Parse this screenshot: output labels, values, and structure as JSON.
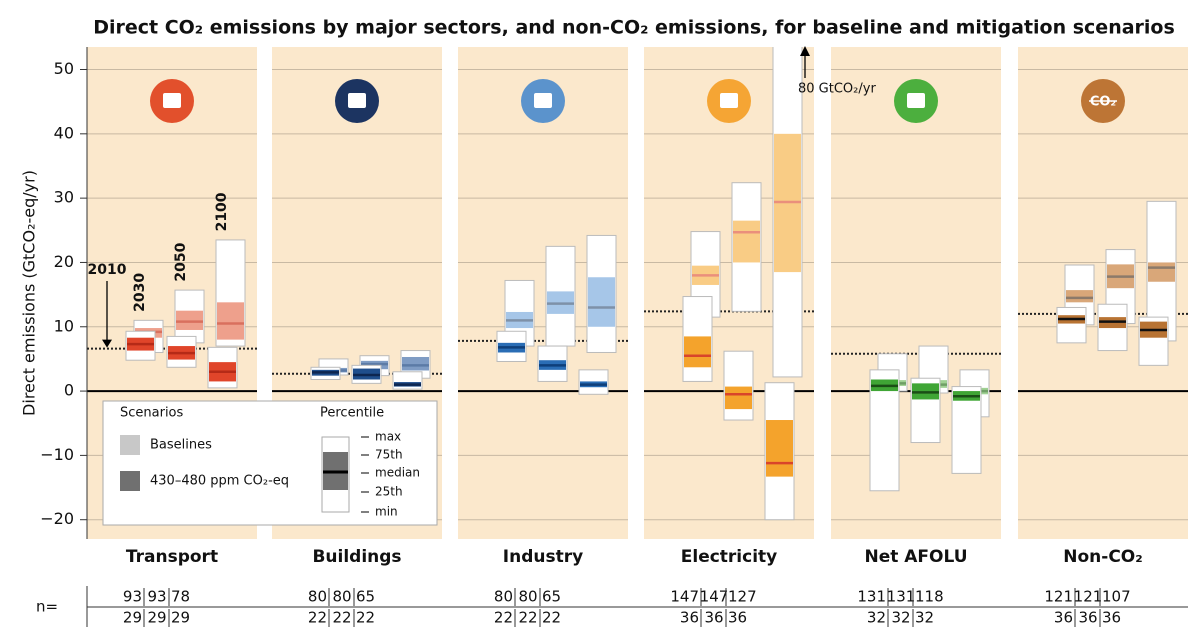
{
  "chart_data": {
    "type": "box",
    "title": "Direct CO₂ emissions by major sectors, and non-CO₂ emissions, for baseline and mitigation scenarios",
    "y_label": "Direct emissions (GtCO₂-eq/yr)",
    "ylim": [
      -23,
      53.5
    ],
    "yticks": [
      {
        "value": -20,
        "label": "−20"
      },
      {
        "value": -10,
        "label": "−10"
      },
      0,
      10,
      20,
      30,
      40,
      50
    ],
    "grid": true,
    "years": [
      "2030",
      "2050",
      "2100"
    ],
    "reference_year": "2010",
    "annotation": "80 GtCO₂/yr",
    "n_label": "n=",
    "series": [
      {
        "name": "Baselines",
        "color": "#c8c8c8"
      },
      {
        "name": "430–480 ppm CO₂-eq",
        "color": "#707070"
      }
    ],
    "legend": {
      "scenarios_title": "Scenarios",
      "percentile_title": "Percentile",
      "percentile_labels": [
        "max",
        "75th",
        "median",
        "25th",
        "min"
      ]
    },
    "sectors": [
      {
        "name": "Transport",
        "reference_2010": 6.6,
        "colors": {
          "icon": "#e2502c",
          "baseline": "#eea08c",
          "mitigation": "#e0452a",
          "baseline_median": "#d9705e",
          "mitigation_median": "#b52a17"
        },
        "baseline": [
          [
            6,
            8.3,
            9.2,
            9.8,
            11
          ],
          [
            7.5,
            9.5,
            10.8,
            12.5,
            15.7
          ],
          [
            7,
            8,
            10.5,
            13.8,
            23.5
          ]
        ],
        "mitigation": [
          [
            4.8,
            6.3,
            7.3,
            8.3,
            9.3
          ],
          [
            3.7,
            4.9,
            5.9,
            7,
            8.5
          ],
          [
            0.5,
            1.5,
            3,
            4.5,
            6.8
          ]
        ],
        "n_baseline": [
          93,
          93,
          78
        ],
        "n_mitigation": [
          29,
          29,
          29
        ]
      },
      {
        "name": "Buildings",
        "reference_2010": 2.7,
        "colors": {
          "icon": "#1c3461",
          "baseline": "#7f9cc4",
          "mitigation": "#1f4e8c",
          "baseline_median": "#5c7ba6",
          "mitigation_median": "#0d2650"
        },
        "baseline": [
          [
            2.5,
            2.9,
            3.2,
            3.6,
            5
          ],
          [
            2.4,
            3.4,
            4.2,
            4.7,
            5.5
          ],
          [
            2,
            3.2,
            4,
            5.3,
            6.3
          ]
        ],
        "mitigation": [
          [
            1.8,
            2.4,
            2.9,
            3.3,
            3.7
          ],
          [
            1.2,
            1.8,
            2.5,
            3.5,
            4
          ],
          [
            0.3,
            0.7,
            1,
            1.4,
            3
          ]
        ],
        "n_baseline": [
          80,
          80,
          65
        ],
        "n_mitigation": [
          22,
          22,
          22
        ]
      },
      {
        "name": "Industry",
        "reference_2010": 7.8,
        "colors": {
          "icon": "#5b93cc",
          "baseline": "#a6c6e8",
          "mitigation": "#2a6db5",
          "baseline_median": "#7e91a8",
          "mitigation_median": "#0e3f7a"
        },
        "baseline": [
          [
            7,
            9.8,
            11,
            12.3,
            17.2
          ],
          [
            7,
            12,
            13.6,
            15.5,
            22.5
          ],
          [
            6,
            10,
            13,
            17.7,
            24.2
          ]
        ],
        "mitigation": [
          [
            4.6,
            6,
            6.8,
            7.5,
            9.3
          ],
          [
            1.5,
            3.3,
            4,
            4.8,
            7
          ],
          [
            -0.5,
            0.6,
            1,
            1.5,
            3.3
          ]
        ],
        "n_baseline": [
          80,
          80,
          65
        ],
        "n_mitigation": [
          22,
          22,
          22
        ]
      },
      {
        "name": "Electricity",
        "reference_2010": 12.4,
        "colors": {
          "icon": "#f5a534",
          "baseline": "#f9cc85",
          "mitigation": "#f4a32c",
          "baseline_median": "#ea8f7c",
          "mitigation_median": "#d9442a"
        },
        "baseline": [
          [
            11.5,
            16.5,
            18,
            19.5,
            24.8
          ],
          [
            12.4,
            20,
            24.7,
            26.5,
            32.4
          ],
          [
            2.2,
            18.5,
            29.4,
            40,
            80
          ]
        ],
        "mitigation": [
          [
            1.5,
            3.7,
            5.5,
            8.5,
            14.7
          ],
          [
            -4.5,
            -2.8,
            -0.5,
            0.7,
            6.2
          ],
          [
            -20,
            -13.3,
            -11.2,
            -4.5,
            1.3
          ]
        ],
        "n_baseline": [
          147,
          147,
          127
        ],
        "n_mitigation": [
          36,
          36,
          36
        ]
      },
      {
        "name": "Net AFOLU",
        "reference_2010": 5.8,
        "colors": {
          "icon": "#4caf3e",
          "baseline": "#9fd193",
          "mitigation": "#3fa535",
          "baseline_median": "#6f9f66",
          "mitigation_median": "#1a4e16"
        },
        "baseline": [
          [
            0,
            0.8,
            1.2,
            1.7,
            5.8
          ],
          [
            -0.3,
            0.5,
            1,
            1.7,
            7
          ],
          [
            -4,
            -0.5,
            0,
            0.5,
            3.3
          ]
        ],
        "mitigation": [
          [
            -15.5,
            0,
            0.8,
            1.8,
            3.3
          ],
          [
            -8,
            -1.3,
            -0.2,
            1.2,
            2
          ],
          [
            -12.8,
            -1.5,
            -0.8,
            0,
            0.7
          ]
        ],
        "n_baseline": [
          131,
          131,
          118
        ],
        "n_mitigation": [
          32,
          32,
          32
        ]
      },
      {
        "name": "Non-CO₂",
        "icon_text": "CO₂",
        "reference_2010": 12,
        "colors": {
          "icon": "#bd7535",
          "baseline": "#d9a779",
          "mitigation": "#b87333",
          "baseline_median": "#8c7a6a",
          "mitigation_median": "#111111"
        },
        "baseline": [
          [
            10.3,
            13.8,
            14.5,
            15.7,
            19.6
          ],
          [
            10.5,
            16,
            17.8,
            19.7,
            22
          ],
          [
            7.8,
            17,
            19.2,
            20,
            29.5
          ]
        ],
        "mitigation": [
          [
            7.5,
            10.5,
            11.2,
            11.8,
            13
          ],
          [
            6.3,
            9.8,
            10.8,
            11.5,
            13.5
          ],
          [
            4,
            8.3,
            9.5,
            10.8,
            11.5
          ]
        ],
        "n_baseline": [
          121,
          121,
          107
        ],
        "n_mitigation": [
          36,
          36,
          36
        ]
      }
    ]
  }
}
